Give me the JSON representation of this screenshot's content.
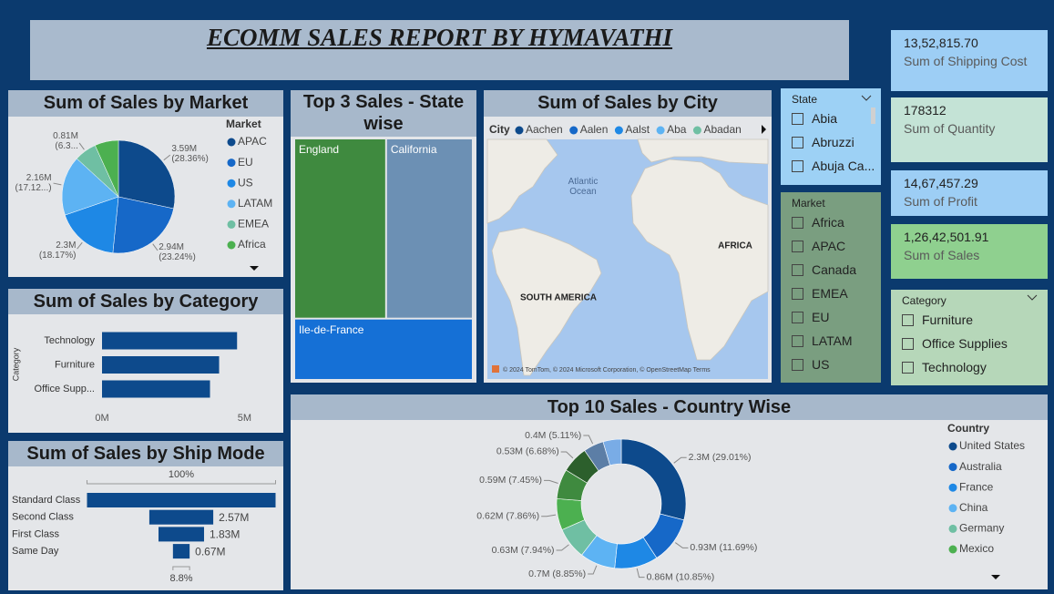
{
  "header": {
    "title": "ECOMM SALES REPORT BY HYMAVATHI"
  },
  "cards": [
    {
      "value": "13,52,815.70",
      "label": "Sum of Shipping Cost"
    },
    {
      "value": "178312",
      "label": "Sum of Quantity"
    },
    {
      "value": "14,67,457.29",
      "label": "Sum of Profit"
    },
    {
      "value": "1,26,42,501.91",
      "label": "Sum of Sales"
    }
  ],
  "slicers": [
    {
      "title": "State",
      "items": [
        "Abia",
        "Abruzzi",
        "Abuja Ca..."
      ]
    },
    {
      "title": "Market",
      "items": [
        "Africa",
        "APAC",
        "Canada",
        "EMEA",
        "EU",
        "LATAM",
        "US"
      ]
    },
    {
      "title": "Category",
      "items": [
        "Furniture",
        "Office Supplies",
        "Technology"
      ]
    }
  ],
  "chart_data": [
    {
      "type": "pie",
      "title": "Sum of Sales by Market",
      "legend_title": "Market",
      "categories": [
        "APAC",
        "EU",
        "US",
        "LATAM",
        "EMEA",
        "Africa"
      ],
      "values": [
        3.59,
        2.94,
        2.3,
        2.16,
        0.81,
        0.86
      ],
      "value_labels": [
        "3.59M (28.36%)",
        "2.94M (23.24%)",
        "2.3M (18.17%)",
        "2.16M (17.12...)",
        "0.81M (6.3...",
        null
      ],
      "colors": [
        "#0d4a8c",
        "#1668c8",
        "#1e88e5",
        "#5db3f3",
        "#6fbfa3",
        "#4cb050"
      ]
    },
    {
      "type": "hbar",
      "title": "Sum of Sales by Category",
      "y_label": "Category",
      "categories": [
        "Technology",
        "Furniture",
        "Office Supp..."
      ],
      "values": [
        4.74,
        4.11,
        3.79
      ],
      "color": "#0d4a8c",
      "xlim": [
        0,
        5.5
      ],
      "xticks": [
        {
          "value": 0,
          "label": "0M"
        },
        {
          "value": 5,
          "label": "5M"
        }
      ]
    },
    {
      "type": "funnel",
      "title": "Sum of Sales by Ship Mode",
      "categories": [
        "Standard Class",
        "Second Class",
        "First Class",
        "Same Day"
      ],
      "values": [
        7.58,
        2.57,
        1.83,
        0.67
      ],
      "value_labels": [
        null,
        "2.57M",
        "1.83M",
        "0.67M"
      ],
      "top_label": "100%",
      "bottom_label": "8.8%",
      "color": "#0d4a8c"
    },
    {
      "type": "treemap",
      "title": "Top 3 Sales - State wise",
      "categories": [
        "England",
        "California",
        "Ile-de-France"
      ],
      "values": [
        485170,
        457688,
        317822
      ],
      "colors": [
        "#3f8a3f",
        "#6c90b4",
        "#1570d6"
      ]
    },
    {
      "type": "map",
      "title": "Sum of Sales by City",
      "legend_title": "City",
      "categories": [
        "Aachen",
        "Aalen",
        "Aalst",
        "Aba",
        "Abadan"
      ],
      "colors": [
        "#0d4a8c",
        "#1668c8",
        "#1e88e5",
        "#5db3f3",
        "#6fbfa3"
      ],
      "labels": [
        "Atlantic Ocean",
        "AFRICA",
        "SOUTH AMERICA"
      ],
      "attribution": "© 2024 TomTom, © 2024 Microsoft Corporation, © OpenStreetMap Terms"
    },
    {
      "type": "donut",
      "title": "Top 10 Sales - Country Wise",
      "legend_title": "Country",
      "categories": [
        "United States",
        "Australia",
        "France",
        "China",
        "Germany",
        "Mexico",
        null,
        null,
        null,
        null
      ],
      "values": [
        2.3,
        0.93,
        0.86,
        0.7,
        0.63,
        0.62,
        0.59,
        0.53,
        0.4,
        0.36
      ],
      "value_labels": [
        "2.3M (29.01%)",
        "0.93M (11.69%)",
        "0.86M (10.85%)",
        "0.7M (8.85%)",
        "0.63M (7.94%)",
        "0.62M (7.86%)",
        "0.59M (7.45%)",
        "0.53M (6.68%)",
        "0.4M (5.11%)",
        null
      ],
      "colors": [
        "#0d4a8c",
        "#1668c8",
        "#1e88e5",
        "#5db3f3",
        "#6fbfa3",
        "#4cb050",
        "#3f8a3f",
        "#2c5f2c",
        "#5c7ea6",
        "#79ace6"
      ]
    }
  ]
}
